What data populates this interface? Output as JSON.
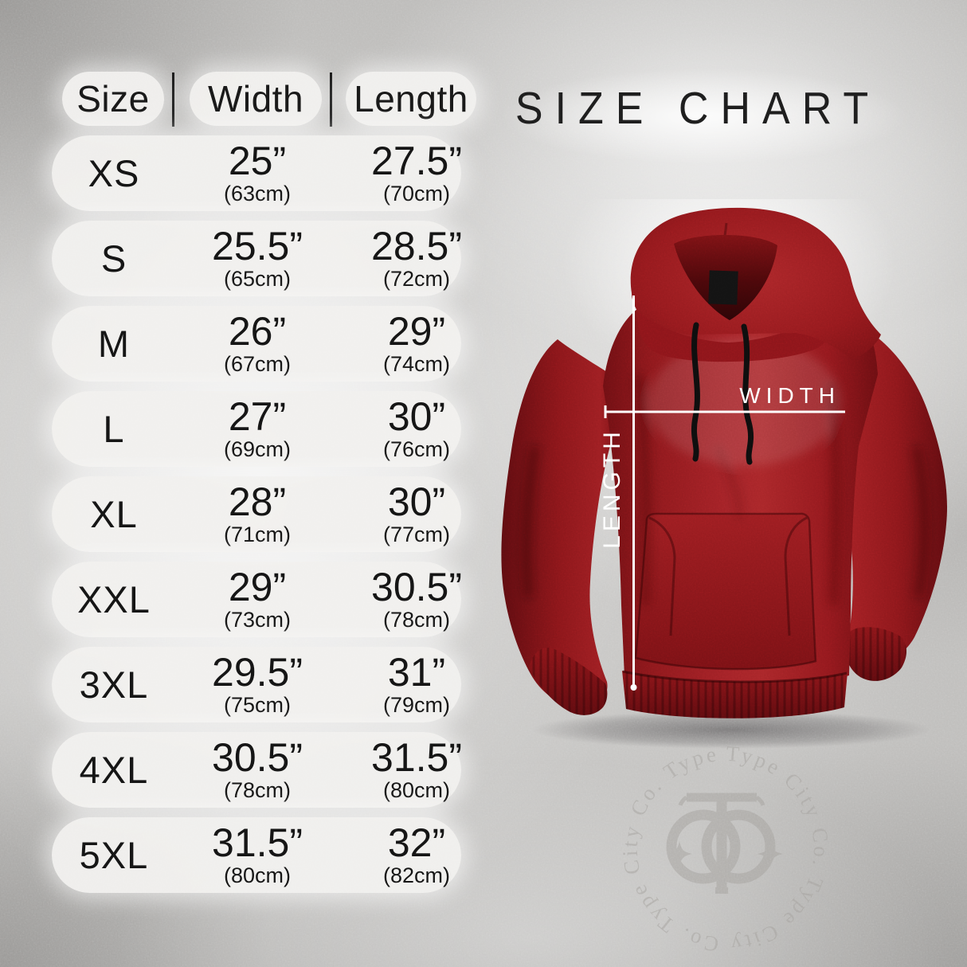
{
  "title": "SIZE CHART",
  "table": {
    "headers": [
      "Size",
      "Width",
      "Length"
    ],
    "rows": [
      {
        "size": "XS",
        "width_in": "25”",
        "width_cm": "(63cm)",
        "length_in": "27.5”",
        "length_cm": "(70cm)"
      },
      {
        "size": "S",
        "width_in": "25.5”",
        "width_cm": "(65cm)",
        "length_in": "28.5”",
        "length_cm": "(72cm)"
      },
      {
        "size": "M",
        "width_in": "26”",
        "width_cm": "(67cm)",
        "length_in": "29”",
        "length_cm": "(74cm)"
      },
      {
        "size": "L",
        "width_in": "27”",
        "width_cm": "(69cm)",
        "length_in": "30”",
        "length_cm": "(76cm)"
      },
      {
        "size": "XL",
        "width_in": "28”",
        "width_cm": "(71cm)",
        "length_in": "30”",
        "length_cm": "(77cm)"
      },
      {
        "size": "XXL",
        "width_in": "29”",
        "width_cm": "(73cm)",
        "length_in": "30.5”",
        "length_cm": "(78cm)"
      },
      {
        "size": "3XL",
        "width_in": "29.5”",
        "width_cm": "(75cm)",
        "length_in": "31”",
        "length_cm": "(79cm)"
      },
      {
        "size": "4XL",
        "width_in": "30.5”",
        "width_cm": "(78cm)",
        "length_in": "31.5”",
        "length_cm": "(80cm)"
      },
      {
        "size": "5XL",
        "width_in": "31.5”",
        "width_cm": "(80cm)",
        "length_in": "32”",
        "length_cm": "(82cm)"
      }
    ]
  },
  "chart_data": {
    "type": "table",
    "title": "SIZE CHART",
    "columns": [
      "Size",
      "Width",
      "Length"
    ],
    "rows": [
      {
        "size": "XS",
        "width_in": 25,
        "width_cm": 63,
        "length_in": 27.5,
        "length_cm": 70
      },
      {
        "size": "S",
        "width_in": 25.5,
        "width_cm": 65,
        "length_in": 28.5,
        "length_cm": 72
      },
      {
        "size": "M",
        "width_in": 26,
        "width_cm": 67,
        "length_in": 29,
        "length_cm": 74
      },
      {
        "size": "L",
        "width_in": 27,
        "width_cm": 69,
        "length_in": 30,
        "length_cm": 76
      },
      {
        "size": "XL",
        "width_in": 28,
        "width_cm": 71,
        "length_in": 30,
        "length_cm": 77
      },
      {
        "size": "XXL",
        "width_in": 29,
        "width_cm": 73,
        "length_in": 30.5,
        "length_cm": 78
      },
      {
        "size": "3XL",
        "width_in": 29.5,
        "width_cm": 75,
        "length_in": 31,
        "length_cm": 79
      },
      {
        "size": "4XL",
        "width_in": 30.5,
        "width_cm": 78,
        "length_in": 31.5,
        "length_cm": 80
      },
      {
        "size": "5XL",
        "width_in": 31.5,
        "width_cm": 80,
        "length_in": 32,
        "length_cm": 82
      }
    ]
  },
  "diagram": {
    "garment": "red pullover hoodie",
    "width_label": "WIDTH",
    "length_label": "LENGTH"
  },
  "watermark": {
    "circular_text": "Type City Co. Type City Co. Type City Co. Type C",
    "monogram": "TC"
  },
  "colors": {
    "hoodie_red": "#9e1e22",
    "hoodie_shadow": "#5f0c10",
    "background": "#c6c5c3",
    "pill": "#f1f0ee",
    "text": "#141414",
    "measure_line": "#ffffff"
  }
}
